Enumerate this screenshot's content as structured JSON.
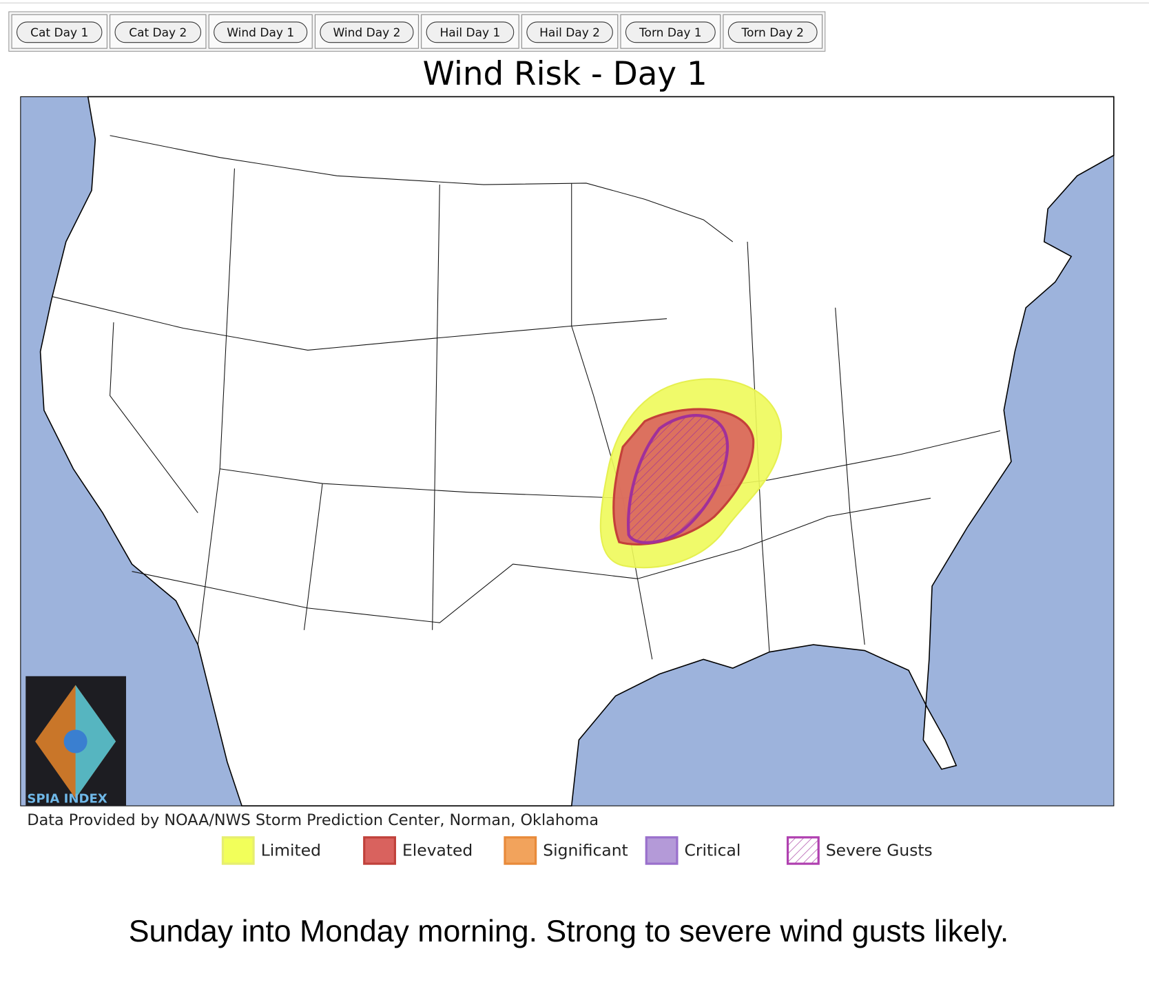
{
  "tabs": [
    "Cat Day 1",
    "Cat Day 2",
    "Wind Day 1",
    "Wind Day 2",
    "Hail Day 1",
    "Hail Day 2",
    "Torn Day 1",
    "Torn Day 2"
  ],
  "title": "Wind Risk - Day 1",
  "map": {
    "credit": "Data Provided by NOAA/NWS Storm Prediction Center, Norman, Oklahoma",
    "logo_text": "SPIA INDEX"
  },
  "legend": [
    "Limited",
    "Elevated",
    "Significant",
    "Critical",
    "Severe Gusts"
  ],
  "caption": "Sunday into Monday morning. Strong to severe wind gusts likely."
}
